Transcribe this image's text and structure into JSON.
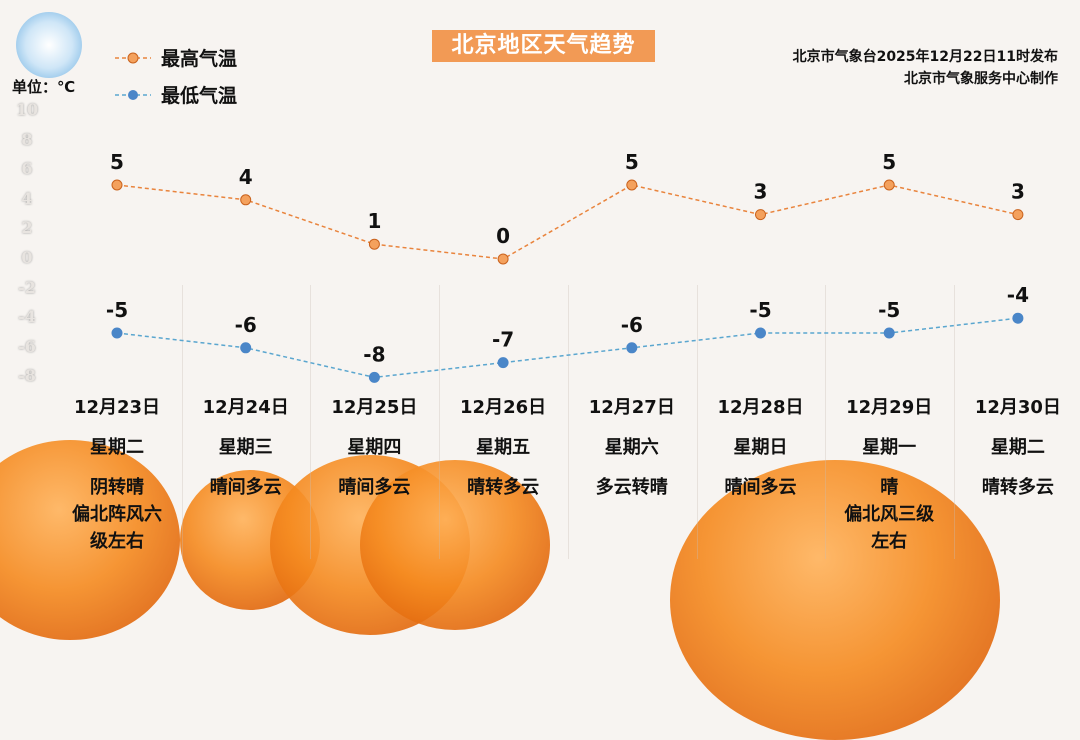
{
  "title": "北京地区天气趋势",
  "issuer": {
    "line1": "北京市气象台2025年12月22日11时发布",
    "line2": "北京市气象服务中心制作"
  },
  "unit": "单位：℃",
  "colors": {
    "high": "#e9843d",
    "low": "#4a86c8",
    "title_bg": "#f29a55"
  },
  "chart_data": {
    "type": "line",
    "title": "北京地区天气趋势",
    "ylabel": "单位：℃",
    "ylim": [
      -8,
      10
    ],
    "yticks": [
      "10",
      "8",
      "6",
      "4",
      "2",
      "0",
      "-2",
      "-4",
      "-6",
      "-8"
    ],
    "categories": [
      "12月23日",
      "12月24日",
      "12月25日",
      "12月26日",
      "12月27日",
      "12月28日",
      "12月29日",
      "12月30日"
    ],
    "weekdays": [
      "星期二",
      "星期三",
      "星期四",
      "星期五",
      "星期六",
      "星期日",
      "星期一",
      "星期二"
    ],
    "weather": [
      [
        "阴转晴",
        "偏北阵风六",
        "级左右"
      ],
      [
        "晴间多云"
      ],
      [
        "晴间多云"
      ],
      [
        "晴转多云"
      ],
      [
        "多云转晴"
      ],
      [
        "晴间多云"
      ],
      [
        "晴",
        "偏北风三级",
        "左右"
      ],
      [
        "晴转多云"
      ]
    ],
    "series": [
      {
        "name": "最高气温",
        "values": [
          5,
          4,
          1,
          0,
          5,
          3,
          5,
          3
        ]
      },
      {
        "name": "最低气温",
        "values": [
          -5,
          -6,
          -8,
          -7,
          -6,
          -5,
          -5,
          -4
        ]
      }
    ],
    "legend": "top-left",
    "grid": false
  }
}
